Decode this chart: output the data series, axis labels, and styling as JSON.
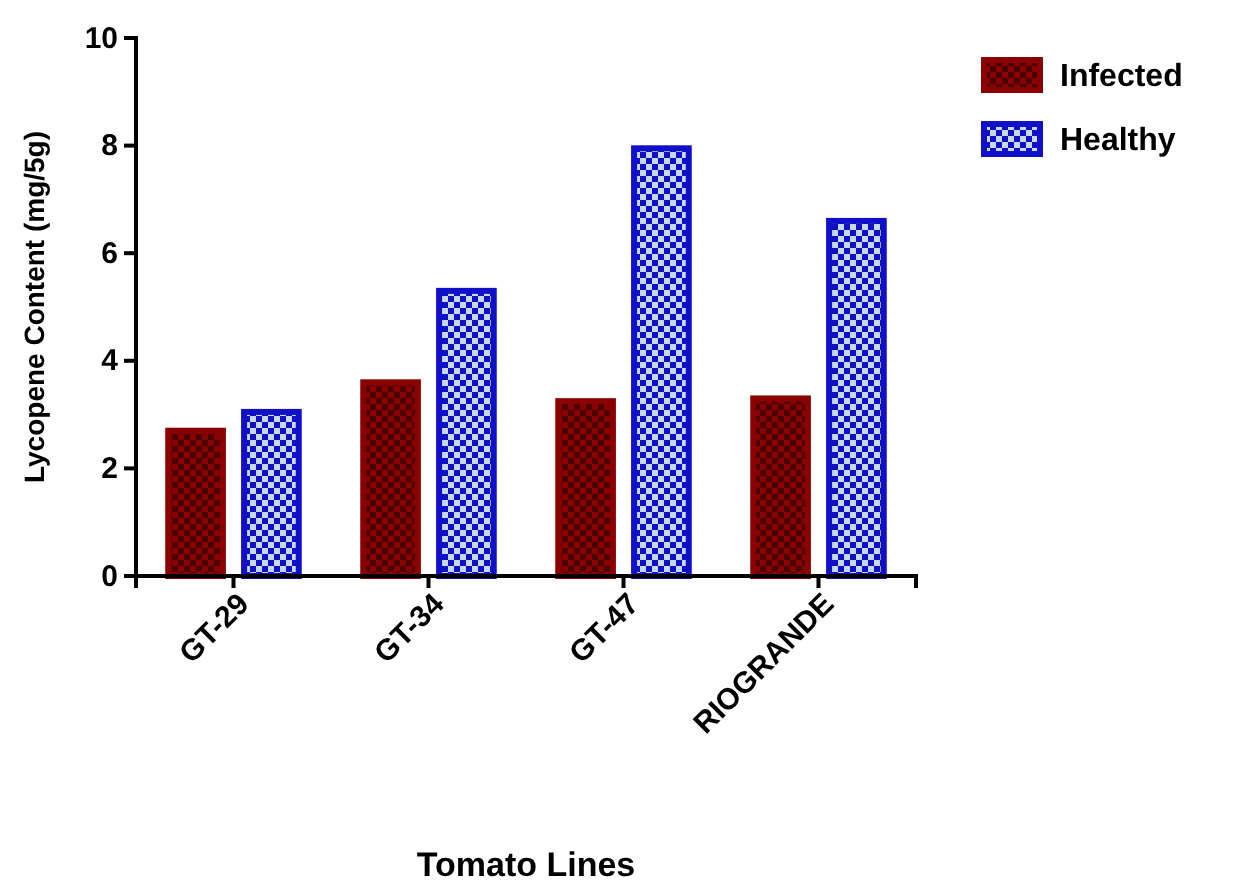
{
  "chart_data": {
    "type": "bar",
    "xlabel": "Tomato Lines",
    "ylabel": "Lycopene Content (mg/5g)",
    "categories": [
      "GT-29",
      "GT-34",
      "GT-47",
      "RIOGRANDE"
    ],
    "series": [
      {
        "name": "Infected",
        "color": "#8b0000",
        "values": [
          2.7,
          3.6,
          3.25,
          3.3
        ]
      },
      {
        "name": "Healthy",
        "color": "#1010c8",
        "values": [
          3.05,
          5.3,
          7.95,
          6.6
        ]
      }
    ],
    "ylim": [
      0,
      10
    ],
    "yticks": [
      0,
      2,
      4,
      6,
      8,
      10
    ],
    "grid": false,
    "legend": "top right"
  }
}
